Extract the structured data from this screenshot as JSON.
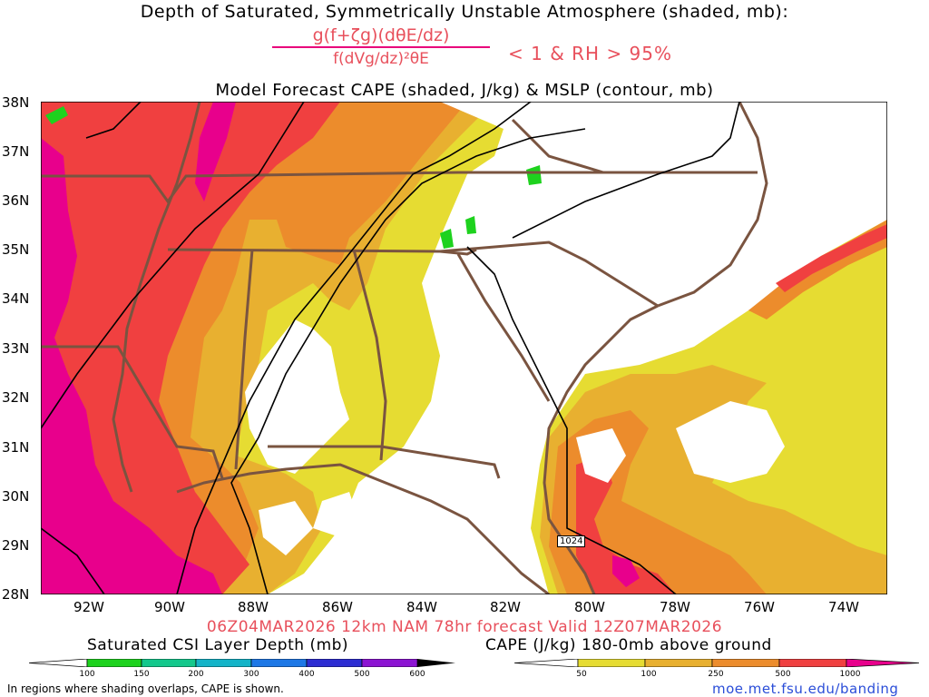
{
  "title": {
    "line1": "Depth of Saturated, Symmetrically Unstable Atmosphere (shaded, mb):",
    "numerator": "g(f+ζg)(dθE/dz)",
    "denominator": "f(dVg/dz)²θE",
    "condition": "< 1 & RH > 95%",
    "line3": "Model Forecast CAPE (shaded, J/kg) & MSLP (contour, mb)"
  },
  "map": {
    "lat_labels": [
      "38N",
      "37N",
      "36N",
      "35N",
      "34N",
      "33N",
      "32N",
      "31N",
      "30N",
      "29N",
      "28N"
    ],
    "lon_labels": [
      "92W",
      "90W",
      "88W",
      "86W",
      "84W",
      "82W",
      "80W",
      "78W",
      "76W",
      "74W"
    ],
    "isobar_label": "1024",
    "colors": {
      "land_border": "#7a5440",
      "isobar": "#000000",
      "cape_50": "#e6dc32",
      "cape_100": "#e8b030",
      "cape_250": "#ec8c2c",
      "cape_500": "#f04040",
      "cape_1000": "#e8008c",
      "csi_100": "#1ed21e"
    }
  },
  "valid_text": "06Z04MAR2026 12km NAM 78hr forecast Valid 12Z07MAR2026",
  "legend_left": {
    "title": "Saturated CSI Layer Depth (mb)",
    "labels": [
      "100",
      "150",
      "200",
      "300",
      "400",
      "500",
      "600"
    ],
    "colors": [
      "#1ed21e",
      "#14c88c",
      "#14b4c8",
      "#1e78e6",
      "#2d2dd2",
      "#8c14d2"
    ]
  },
  "legend_right": {
    "title": "CAPE (J/kg) 180-0mb above ground",
    "labels": [
      "50",
      "100",
      "250",
      "500",
      "1000"
    ],
    "colors": [
      "#e6dc32",
      "#e8b030",
      "#ec8c2c",
      "#f04040",
      "#e8008c"
    ]
  },
  "note": "In regions where shading overlaps, CAPE is shown.",
  "url": "moe.met.fsu.edu/banding"
}
